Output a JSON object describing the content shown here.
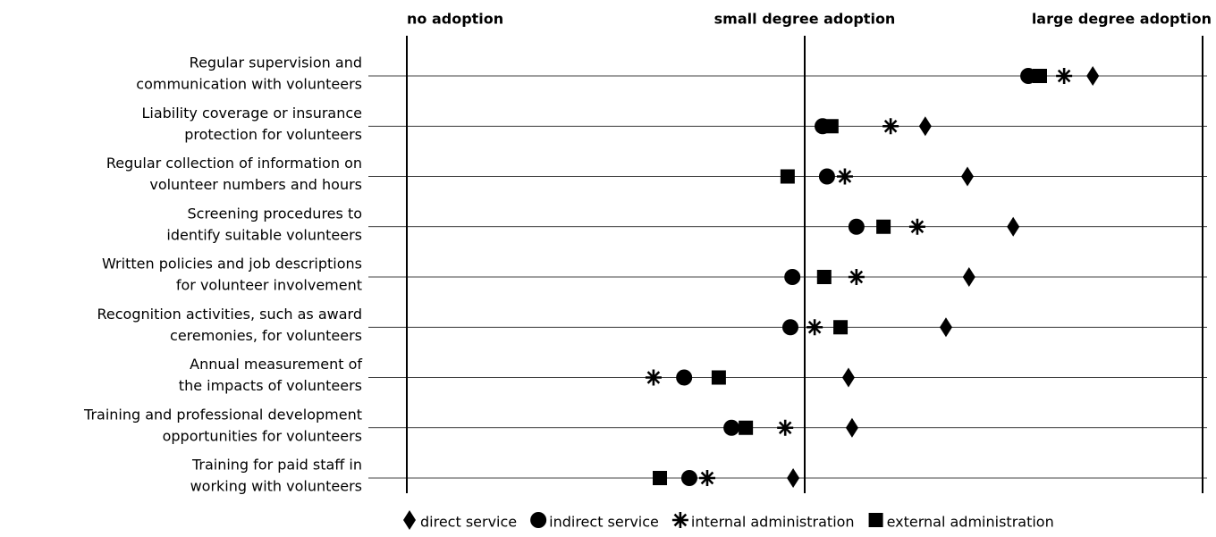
{
  "chart_data": {
    "type": "dot",
    "categories": [
      [
        "Regular supervision and",
        "communication with volunteers"
      ],
      [
        "Liability coverage or insurance",
        "protection for volunteers"
      ],
      [
        "Regular collection of information on",
        "volunteer numbers and hours"
      ],
      [
        "Screening procedures to",
        "identify suitable volunteers"
      ],
      [
        "Written policies and job descriptions",
        "for volunteer involvement"
      ],
      [
        "Recognition activities, such as award",
        "ceremonies, for volunteers"
      ],
      [
        "Annual measurement of",
        "the impacts of volunteers"
      ],
      [
        "Training and professional development",
        "opportunities for volunteers"
      ],
      [
        "Training for paid staff in",
        "working with volunteers"
      ]
    ],
    "series": [
      {
        "name": "direct service",
        "marker": "diamond",
        "color": "#000000",
        "values": [
          1.724,
          1.303,
          1.409,
          1.524,
          1.413,
          1.355,
          1.11,
          1.119,
          0.971
        ]
      },
      {
        "name": "indirect service",
        "marker": "circle",
        "color": "#000000",
        "values": [
          1.562,
          1.045,
          1.056,
          1.13,
          0.969,
          0.964,
          0.697,
          0.816,
          0.71
        ]
      },
      {
        "name": "internal administration",
        "marker": "asterisk",
        "color": "#000000",
        "values": [
          1.652,
          1.216,
          1.101,
          1.283,
          1.13,
          1.025,
          0.62,
          0.951,
          0.755
        ]
      },
      {
        "name": "external administration",
        "marker": "square",
        "color": "#000000",
        "values": [
          1.591,
          1.067,
          0.957,
          1.198,
          1.049,
          1.09,
          0.784,
          0.852,
          0.636
        ]
      }
    ],
    "xlim": [
      0,
      2
    ],
    "xticks": [
      {
        "value": 0,
        "label": "no adoption"
      },
      {
        "value": 1,
        "label": "small degree adoption"
      },
      {
        "value": 2,
        "label": "large degree adoption"
      }
    ],
    "legend": "bottom"
  }
}
